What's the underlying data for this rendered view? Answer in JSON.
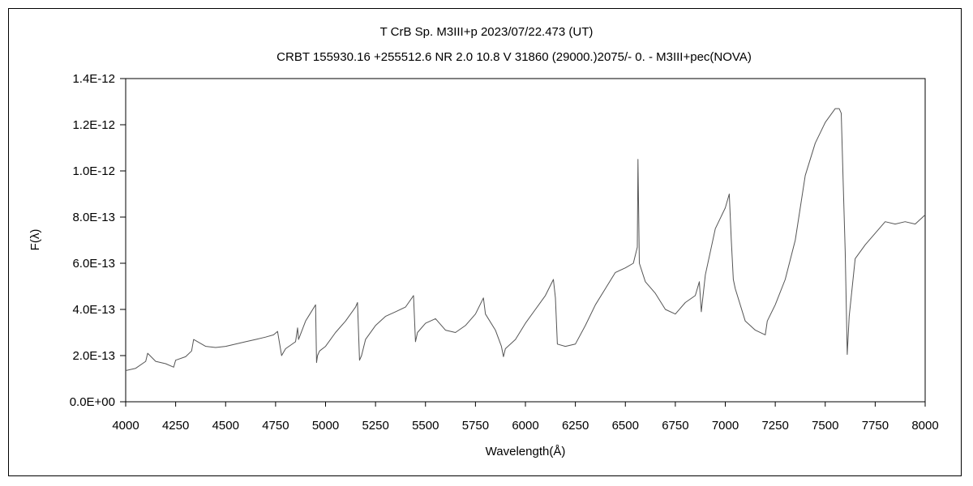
{
  "chart_data": {
    "type": "line",
    "title": "T CrB    Sp. M3III+p    2023/07/22.473 (UT)",
    "subtitle": "CRBT 155930.16 +255512.6 NR 2.0 10.8 V 31860 (29000.)2075/-  0. - M3III+pec(NOVA)",
    "xlabel": "Wavelength(Å)",
    "ylabel": "F(λ)",
    "xlim": [
      4000,
      8000
    ],
    "ylim": [
      0,
      1.4e-12
    ],
    "x_ticks": [
      "4000",
      "4250",
      "4500",
      "4750",
      "5000",
      "5250",
      "5500",
      "5750",
      "6000",
      "6250",
      "6500",
      "6750",
      "7000",
      "7250",
      "7500",
      "7750",
      "8000"
    ],
    "y_ticks": [
      "0.0E+00",
      "2.0E-13",
      "4.0E-13",
      "6.0E-13",
      "8.0E-13",
      "1.0E-12",
      "1.2E-12",
      "1.4E-12"
    ],
    "grid": false,
    "line_color": "#555555",
    "series": [
      {
        "x": [
          4000,
          4050,
          4100,
          4110,
          4150,
          4200,
          4240,
          4250,
          4300,
          4330,
          4340,
          4400,
          4450,
          4500,
          4550,
          4600,
          4650,
          4700,
          4740,
          4760,
          4780,
          4800,
          4850,
          4860,
          4865,
          4900,
          4950,
          4955,
          4960,
          4970,
          5000,
          5050,
          5100,
          5150,
          5160,
          5170,
          5180,
          5200,
          5250,
          5300,
          5350,
          5400,
          5440,
          5450,
          5460,
          5500,
          5550,
          5600,
          5650,
          5700,
          5750,
          5790,
          5800,
          5850,
          5880,
          5890,
          5900,
          5950,
          6000,
          6050,
          6100,
          6140,
          6150,
          6160,
          6200,
          6250,
          6300,
          6350,
          6400,
          6450,
          6500,
          6540,
          6560,
          6563,
          6570,
          6600,
          6650,
          6700,
          6750,
          6800,
          6850,
          6870,
          6880,
          6900,
          6950,
          7000,
          7020,
          7030,
          7040,
          7050,
          7100,
          7150,
          7200,
          7210,
          7250,
          7300,
          7350,
          7400,
          7450,
          7500,
          7550,
          7570,
          7580,
          7590,
          7600,
          7610,
          7620,
          7650,
          7700,
          7750,
          7800,
          7850,
          7900,
          7950,
          8000
        ],
        "y": [
          1.35e-13,
          1.45e-13,
          1.75e-13,
          2.1e-13,
          1.75e-13,
          1.65e-13,
          1.5e-13,
          1.8e-13,
          1.95e-13,
          2.2e-13,
          2.7e-13,
          2.4e-13,
          2.35e-13,
          2.4e-13,
          2.5e-13,
          2.6e-13,
          2.7e-13,
          2.8e-13,
          2.9e-13,
          3.05e-13,
          2e-13,
          2.3e-13,
          2.6e-13,
          3.2e-13,
          2.7e-13,
          3.5e-13,
          4.2e-13,
          1.7e-13,
          2e-13,
          2.2e-13,
          2.4e-13,
          3e-13,
          3.5e-13,
          4.1e-13,
          4.3e-13,
          1.8e-13,
          2e-13,
          2.7e-13,
          3.3e-13,
          3.7e-13,
          3.9e-13,
          4.1e-13,
          4.6e-13,
          2.6e-13,
          3e-13,
          3.4e-13,
          3.6e-13,
          3.1e-13,
          3e-13,
          3.3e-13,
          3.8e-13,
          4.5e-13,
          3.8e-13,
          3.1e-13,
          2.4e-13,
          1.95e-13,
          2.3e-13,
          2.7e-13,
          3.4e-13,
          4e-13,
          4.6e-13,
          5.3e-13,
          4.5e-13,
          2.5e-13,
          2.4e-13,
          2.5e-13,
          3.3e-13,
          4.2e-13,
          4.9e-13,
          5.6e-13,
          5.8e-13,
          6e-13,
          6.7e-13,
          1.05e-12,
          6e-13,
          5.2e-13,
          4.7e-13,
          4e-13,
          3.8e-13,
          4.3e-13,
          4.6e-13,
          5.2e-13,
          3.9e-13,
          5.5e-13,
          7.5e-13,
          8.4e-13,
          9e-13,
          7e-13,
          5.3e-13,
          4.9e-13,
          3.5e-13,
          3.1e-13,
          2.9e-13,
          3.5e-13,
          4.2e-13,
          5.3e-13,
          7e-13,
          9.8e-13,
          1.12e-12,
          1.21e-12,
          1.27e-12,
          1.27e-12,
          1.25e-12,
          9.5e-13,
          6.5e-13,
          2.05e-13,
          3.7e-13,
          6.2e-13,
          6.8e-13,
          7.3e-13,
          7.8e-13,
          7.7e-13,
          7.8e-13,
          7.7e-13,
          8.1e-13
        ]
      }
    ]
  }
}
